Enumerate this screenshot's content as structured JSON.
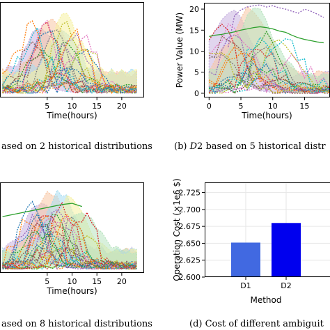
{
  "figure": {
    "captions": {
      "a": "ased on 2 historical distributions",
      "b_prefix": "(b) ",
      "b_italic": "D",
      "b_rest": "2 based on 5 historical distr",
      "c": "ased on 8 historical distributions",
      "d": "(d)  Cost of different ambiguit"
    }
  },
  "chart_data": [
    {
      "id": "a",
      "type": "line",
      "xlabel": "Time(hours)",
      "ylabel": "",
      "xlim": [
        -4.5,
        24.5
      ],
      "ylim": [
        -1,
        20.5
      ],
      "x_ticks": [
        5,
        10,
        15,
        20
      ],
      "y_ticks": [],
      "grid": false,
      "band_colors": [
        "#c8b3e0",
        "#f8c6a4",
        "#a8ddf0",
        "#f6f0a0"
      ],
      "series_count": 22,
      "palette": [
        "#1f77b4",
        "#ff7f0e",
        "#2ca02c",
        "#d62728",
        "#9467bd",
        "#8c564b",
        "#e377c2",
        "#7f7f7f",
        "#bcbd22",
        "#17becf"
      ],
      "annotation": "dense dotted demand trajectories peaking around 3-7 hours, decaying to ~0.5 MW after 15 hours"
    },
    {
      "id": "b",
      "type": "line",
      "xlabel": "Time(hours)",
      "ylabel": "Power Value (MW)",
      "xlim": [
        -0.8,
        19
      ],
      "ylim": [
        -1,
        21.5
      ],
      "x_ticks": [
        0,
        5,
        10,
        15
      ],
      "y_ticks": [
        0,
        5,
        10,
        15,
        20
      ],
      "grid": false,
      "band_colors": [
        "#c8b3e0",
        "#f8c6a4",
        "#b8e3c0"
      ],
      "highlight_series": {
        "color": "#2ca02c",
        "x": [
          0,
          1,
          2,
          3,
          4,
          5,
          6,
          7,
          8,
          9,
          10,
          11,
          12,
          13,
          14,
          15,
          16,
          17,
          18
        ],
        "y": [
          13.5,
          13.8,
          14,
          14.3,
          14.6,
          15,
          15.3,
          15.6,
          15.8,
          15.6,
          15.3,
          14.8,
          14.5,
          13.8,
          13.2,
          12.8,
          12.5,
          12.2,
          12
        ]
      },
      "upper_envelope": {
        "x": [
          3,
          4,
          5,
          6,
          7,
          8,
          9,
          10,
          11,
          12,
          13,
          14,
          15,
          16,
          17,
          18
        ],
        "y": [
          11,
          18.5,
          19.8,
          20.5,
          20.8,
          21,
          20.5,
          20.8,
          20.3,
          20,
          19.5,
          19,
          20,
          19.5,
          18.8,
          18
        ]
      },
      "series_count": 20,
      "palette": [
        "#1f77b4",
        "#ff7f0e",
        "#2ca02c",
        "#d62728",
        "#9467bd",
        "#8c564b",
        "#e377c2",
        "#7f7f7f",
        "#bcbd22",
        "#17becf"
      ]
    },
    {
      "id": "c",
      "type": "line",
      "xlabel": "Time(hours)",
      "ylabel": "",
      "xlim": [
        -4.5,
        24.5
      ],
      "ylim": [
        -1,
        21.5
      ],
      "x_ticks": [
        5,
        10,
        15,
        20
      ],
      "y_ticks": [],
      "grid": false,
      "band_colors": [
        "#c8b3e0",
        "#f8c6a4",
        "#a8ddf0",
        "#f6f0a0",
        "#b8e3c0"
      ],
      "highlight_series": {
        "color": "#2ca02c",
        "x": [
          -4,
          -2,
          0,
          2,
          4,
          6,
          8,
          10,
          12
        ],
        "y": [
          13,
          13.5,
          14,
          14.5,
          15,
          15.5,
          16,
          16.3,
          15.5
        ]
      },
      "series_count": 26,
      "palette": [
        "#1f77b4",
        "#ff7f0e",
        "#2ca02c",
        "#d62728",
        "#9467bd",
        "#8c564b",
        "#e377c2",
        "#7f7f7f",
        "#bcbd22",
        "#17becf"
      ]
    },
    {
      "id": "d",
      "type": "bar",
      "categories": [
        "D1",
        "D2"
      ],
      "values": [
        2.651,
        2.68
      ],
      "colors": [
        "#4169e1",
        "#0000ee"
      ],
      "xlabel": "Method",
      "ylabel": "Operation Cost (×1e6 $)",
      "ylim": [
        2.6,
        2.74
      ],
      "y_ticks": [
        2.6,
        2.625,
        2.65,
        2.675,
        2.7,
        2.725
      ],
      "y_tick_labels": [
        "2.600",
        "2.625",
        "2.650",
        "2.675",
        "2.700",
        "2.725"
      ],
      "grid": true
    }
  ]
}
